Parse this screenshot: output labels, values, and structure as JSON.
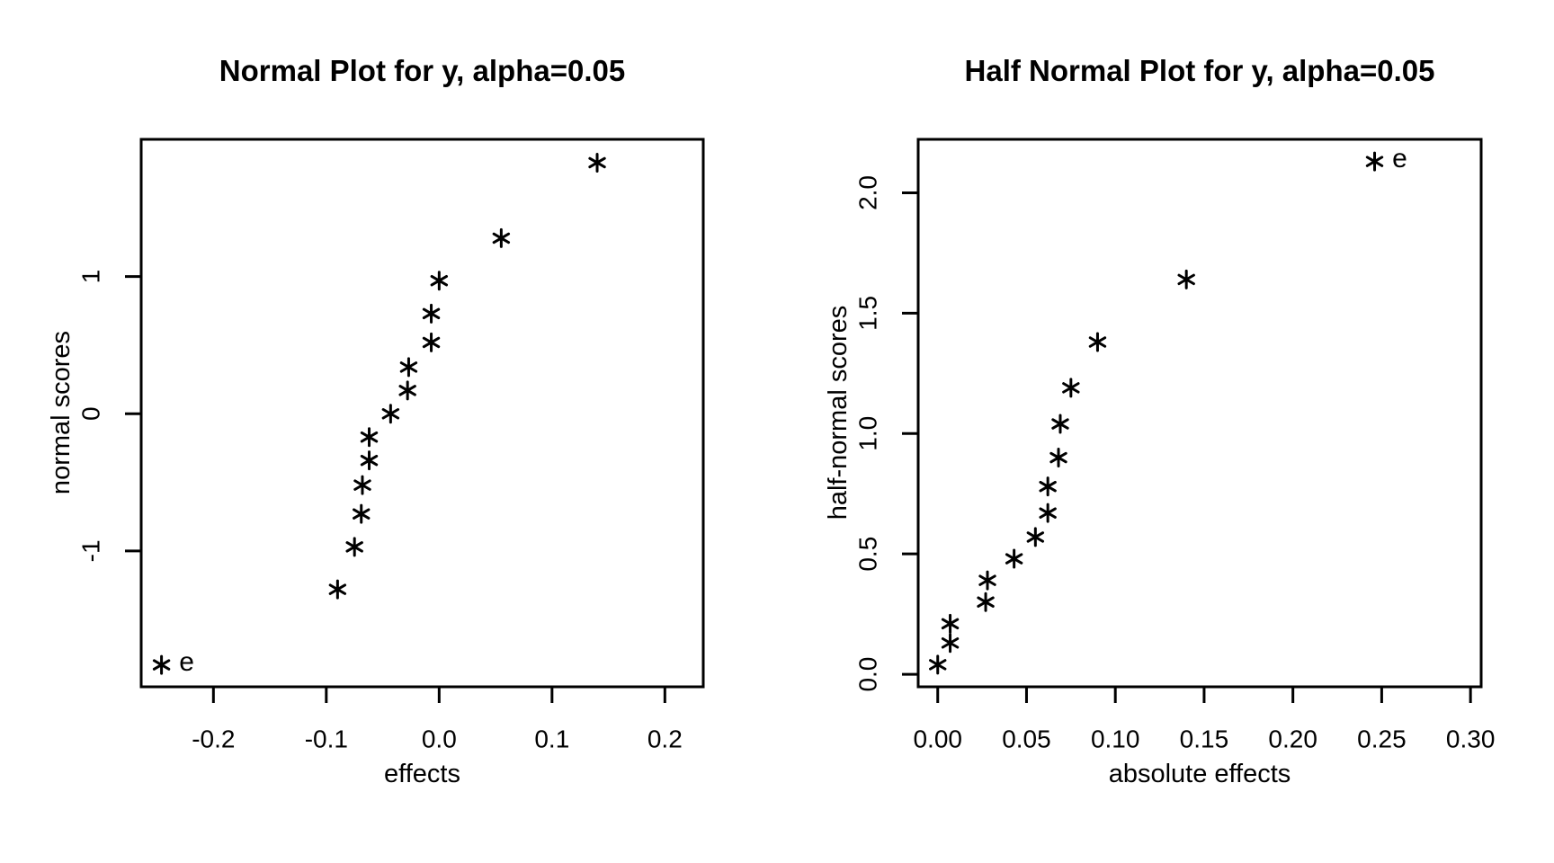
{
  "page": {
    "background": "#ffffff",
    "foreground": "#000000"
  },
  "chart_data": [
    {
      "type": "scatter",
      "title": "Normal Plot for y, alpha=0.05",
      "xlabel": "effects",
      "ylabel": "normal scores",
      "marker": "*",
      "significant_label": "e",
      "grid": false,
      "xlim": [
        -0.264,
        0.234
      ],
      "ylim": [
        -1.99,
        2.0
      ],
      "xticks": {
        "values": [
          -0.2,
          -0.1,
          0.0,
          0.1,
          0.2
        ],
        "labels": [
          "-0.2",
          "-0.1",
          "0.0",
          "0.1",
          "0.2"
        ]
      },
      "yticks": {
        "values": [
          -1,
          0,
          1
        ],
        "labels": [
          "-1",
          "0",
          "1"
        ]
      },
      "points": [
        {
          "x": -0.246,
          "y": -1.83,
          "label": "e"
        },
        {
          "x": -0.09,
          "y": -1.28
        },
        {
          "x": -0.075,
          "y": -0.97
        },
        {
          "x": -0.069,
          "y": -0.73
        },
        {
          "x": -0.068,
          "y": -0.52
        },
        {
          "x": -0.062,
          "y": -0.34
        },
        {
          "x": -0.062,
          "y": -0.17
        },
        {
          "x": -0.043,
          "y": 0.0
        },
        {
          "x": -0.028,
          "y": 0.17
        },
        {
          "x": -0.027,
          "y": 0.34
        },
        {
          "x": -0.007,
          "y": 0.52
        },
        {
          "x": -0.007,
          "y": 0.73
        },
        {
          "x": 0.0,
          "y": 0.97
        },
        {
          "x": 0.055,
          "y": 1.28
        },
        {
          "x": 0.14,
          "y": 1.83
        }
      ]
    },
    {
      "type": "scatter",
      "title": "Half Normal Plot for y, alpha=0.05",
      "xlabel": "absolute effects",
      "ylabel": "half-normal scores",
      "marker": "*",
      "significant_label": "e",
      "grid": false,
      "xlim": [
        -0.011,
        0.306
      ],
      "ylim": [
        -0.052,
        2.222
      ],
      "xticks": {
        "values": [
          0.0,
          0.05,
          0.1,
          0.15,
          0.2,
          0.25,
          0.3
        ],
        "labels": [
          "0.00",
          "0.05",
          "0.10",
          "0.15",
          "0.20",
          "0.25",
          "0.30"
        ]
      },
      "yticks": {
        "values": [
          0.0,
          0.5,
          1.0,
          1.5,
          2.0
        ],
        "labels": [
          "0.0",
          "0.5",
          "1.0",
          "1.5",
          "2.0"
        ]
      },
      "points": [
        {
          "x": 0.0,
          "y": 0.04
        },
        {
          "x": 0.007,
          "y": 0.13
        },
        {
          "x": 0.007,
          "y": 0.21
        },
        {
          "x": 0.027,
          "y": 0.3
        },
        {
          "x": 0.028,
          "y": 0.39
        },
        {
          "x": 0.043,
          "y": 0.48
        },
        {
          "x": 0.055,
          "y": 0.57
        },
        {
          "x": 0.062,
          "y": 0.67
        },
        {
          "x": 0.062,
          "y": 0.78
        },
        {
          "x": 0.068,
          "y": 0.9
        },
        {
          "x": 0.069,
          "y": 1.04
        },
        {
          "x": 0.075,
          "y": 1.19
        },
        {
          "x": 0.09,
          "y": 1.38
        },
        {
          "x": 0.14,
          "y": 1.64
        },
        {
          "x": 0.246,
          "y": 2.13,
          "label": "e"
        }
      ]
    }
  ]
}
